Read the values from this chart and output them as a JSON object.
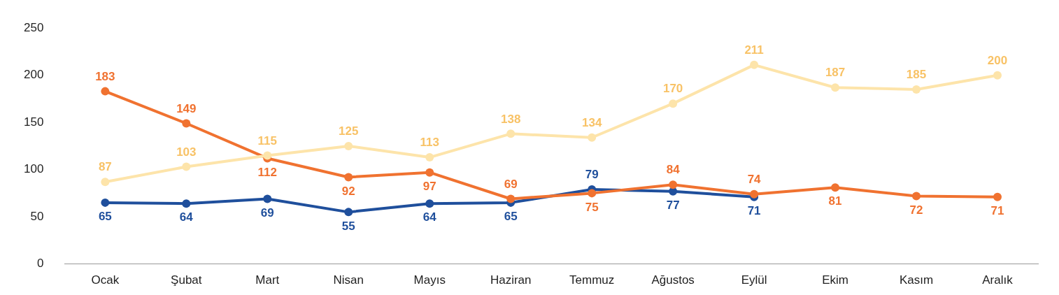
{
  "chart_data": {
    "type": "line",
    "categories": [
      "Ocak",
      "Şubat",
      "Mart",
      "Nisan",
      "Mayıs",
      "Haziran",
      "Temmuz",
      "Ağustos",
      "Eylül",
      "Ekim",
      "Kasım",
      "Aralık"
    ],
    "series": [
      {
        "color": "#fde4aa",
        "values": [
          87,
          103,
          115,
          125,
          113,
          138,
          134,
          170,
          211,
          187,
          185,
          200
        ]
      },
      {
        "color": "#f07230",
        "values": [
          183,
          149,
          112,
          92,
          97,
          69,
          75,
          84,
          74,
          81,
          72,
          71
        ]
      },
      {
        "color": "#1f4f9c",
        "values": [
          65,
          64,
          69,
          55,
          64,
          65,
          79,
          77,
          71,
          null,
          null,
          null
        ]
      }
    ],
    "ylim": [
      0,
      250
    ],
    "yticks": [
      0,
      50,
      100,
      150,
      200,
      250
    ],
    "grid": false,
    "legend": false,
    "marker": "circle",
    "line_style": "solid",
    "data_labels": true
  }
}
